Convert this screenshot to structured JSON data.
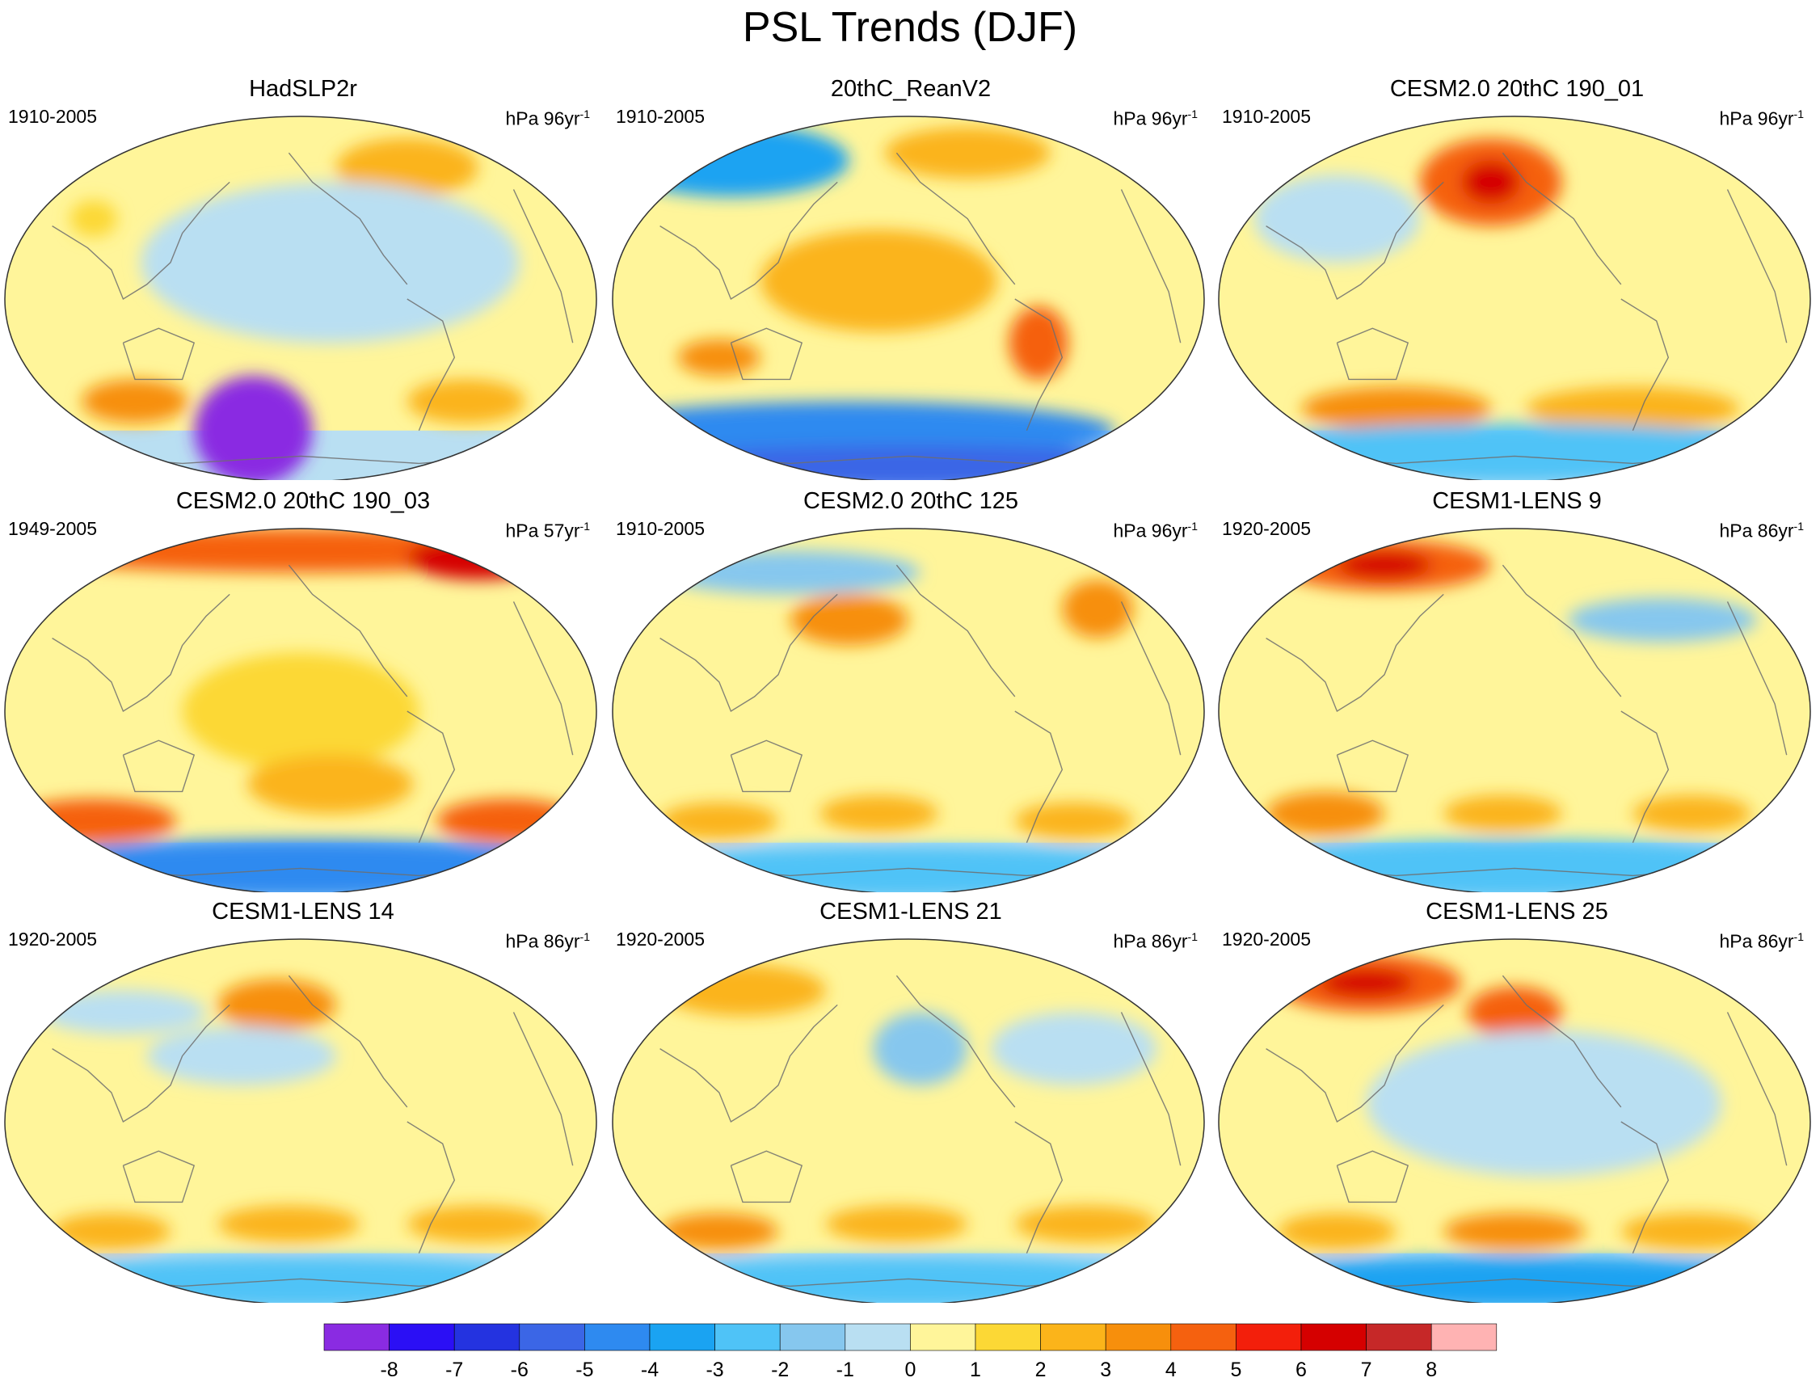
{
  "title": "PSL Trends (DJF)",
  "chart_data": {
    "type": "heatmap",
    "title": "PSL Trends (DJF)",
    "projection": "Robinson-like global map (Pacific-centered)",
    "colorbar": {
      "levels": [
        -8,
        -7,
        -6,
        -5,
        -4,
        -3,
        -2,
        -1,
        0,
        1,
        2,
        3,
        4,
        5,
        6,
        7,
        8
      ],
      "tick_labels": [
        "-8",
        "-7",
        "-6",
        "-5",
        "-4",
        "-3",
        "-2",
        "-1",
        "0",
        "1",
        "2",
        "3",
        "4",
        "5",
        "6",
        "7",
        "8"
      ],
      "colors": [
        "#8a2be2",
        "#2b0ff5",
        "#2433e0",
        "#3b66e6",
        "#2e8af0",
        "#1aa3f2",
        "#4fc3f7",
        "#86c7ee",
        "#b9dff2",
        "#fff59a",
        "#fcd835",
        "#fbb41a",
        "#f78f0c",
        "#f5610f",
        "#f31f0b",
        "#d50000",
        "#c62828",
        "#ffb3b3"
      ]
    },
    "panels": [
      {
        "name": "HadSLP2r",
        "period": "1910-2005",
        "units": "hPa 96yr",
        "units_sup": "-1",
        "features": [
          {
            "lon": 0.42,
            "lat": 0.86,
            "rx": 0.1,
            "ry": 0.15,
            "level": -8
          },
          {
            "lon": 0.42,
            "lat": 0.86,
            "rx": 0.06,
            "ry": 0.1,
            "level": -9
          },
          {
            "lon": 0.68,
            "lat": 0.14,
            "rx": 0.12,
            "ry": 0.08,
            "level": 2
          },
          {
            "lon": 0.22,
            "lat": 0.78,
            "rx": 0.09,
            "ry": 0.06,
            "level": 3
          },
          {
            "lon": 0.78,
            "lat": 0.78,
            "rx": 0.1,
            "ry": 0.06,
            "level": 2
          },
          {
            "lon": 0.15,
            "lat": 0.28,
            "rx": 0.04,
            "ry": 0.05,
            "level": 1
          },
          {
            "lon": 0.55,
            "lat": 0.4,
            "rx": 0.32,
            "ry": 0.22,
            "level": -1
          }
        ]
      },
      {
        "name": "20thC_ReanV2",
        "period": "1910-2005",
        "units": "hPa 96yr",
        "units_sup": "-1",
        "features": [
          {
            "lon": 0.2,
            "lat": 0.12,
            "rx": 0.2,
            "ry": 0.1,
            "level": -4
          },
          {
            "lon": 0.6,
            "lat": 0.1,
            "rx": 0.14,
            "ry": 0.07,
            "level": 2
          },
          {
            "lon": 0.45,
            "lat": 0.45,
            "rx": 0.2,
            "ry": 0.14,
            "level": 2
          },
          {
            "lon": 0.72,
            "lat": 0.62,
            "rx": 0.05,
            "ry": 0.1,
            "level": 4
          },
          {
            "lon": 0.18,
            "lat": 0.66,
            "rx": 0.07,
            "ry": 0.05,
            "level": 3
          },
          {
            "lon": 0.4,
            "lat": 0.86,
            "rx": 0.45,
            "ry": 0.08,
            "level": -5
          },
          {
            "lon": 0.5,
            "lat": 0.96,
            "rx": 0.5,
            "ry": 0.06,
            "level": -6
          }
        ]
      },
      {
        "name": "CESM2.0 20thC 190_01",
        "period": "1910-2005",
        "units": "hPa 96yr",
        "units_sup": "-1",
        "features": [
          {
            "lon": 0.46,
            "lat": 0.18,
            "rx": 0.12,
            "ry": 0.12,
            "level": 4
          },
          {
            "lon": 0.46,
            "lat": 0.18,
            "rx": 0.05,
            "ry": 0.06,
            "level": 6
          },
          {
            "lon": 0.2,
            "lat": 0.28,
            "rx": 0.14,
            "ry": 0.12,
            "level": -1
          },
          {
            "lon": 0.3,
            "lat": 0.8,
            "rx": 0.16,
            "ry": 0.06,
            "level": 3
          },
          {
            "lon": 0.7,
            "lat": 0.8,
            "rx": 0.18,
            "ry": 0.06,
            "level": 2
          },
          {
            "lon": 0.5,
            "lat": 0.92,
            "rx": 0.5,
            "ry": 0.08,
            "level": -3
          }
        ]
      },
      {
        "name": "CESM2.0 20thC 190_03",
        "period": "1949-2005",
        "units": "hPa 57yr",
        "units_sup": "-1",
        "features": [
          {
            "lon": 0.5,
            "lat": 0.06,
            "rx": 0.5,
            "ry": 0.06,
            "level": 4
          },
          {
            "lon": 0.8,
            "lat": 0.08,
            "rx": 0.12,
            "ry": 0.06,
            "level": 6
          },
          {
            "lon": 0.5,
            "lat": 0.5,
            "rx": 0.2,
            "ry": 0.16,
            "level": 1
          },
          {
            "lon": 0.55,
            "lat": 0.7,
            "rx": 0.14,
            "ry": 0.08,
            "level": 2
          },
          {
            "lon": 0.15,
            "lat": 0.8,
            "rx": 0.14,
            "ry": 0.06,
            "level": 4
          },
          {
            "lon": 0.85,
            "lat": 0.8,
            "rx": 0.12,
            "ry": 0.06,
            "level": 4
          },
          {
            "lon": 0.5,
            "lat": 0.93,
            "rx": 0.5,
            "ry": 0.08,
            "level": -5
          }
        ]
      },
      {
        "name": "CESM2.0 20thC 125",
        "period": "1910-2005",
        "units": "hPa 96yr",
        "units_sup": "-1",
        "features": [
          {
            "lon": 0.4,
            "lat": 0.25,
            "rx": 0.1,
            "ry": 0.07,
            "level": 3
          },
          {
            "lon": 0.82,
            "lat": 0.22,
            "rx": 0.06,
            "ry": 0.08,
            "level": 3
          },
          {
            "lon": 0.3,
            "lat": 0.12,
            "rx": 0.22,
            "ry": 0.06,
            "level": -2
          },
          {
            "lon": 0.18,
            "lat": 0.8,
            "rx": 0.1,
            "ry": 0.05,
            "level": 2
          },
          {
            "lon": 0.45,
            "lat": 0.78,
            "rx": 0.1,
            "ry": 0.05,
            "level": 2
          },
          {
            "lon": 0.78,
            "lat": 0.8,
            "rx": 0.1,
            "ry": 0.05,
            "level": 2
          },
          {
            "lon": 0.5,
            "lat": 0.94,
            "rx": 0.5,
            "ry": 0.07,
            "level": -3
          }
        ]
      },
      {
        "name": "CESM1-LENS 9",
        "period": "1920-2005",
        "units": "hPa 86yr",
        "units_sup": "-1",
        "features": [
          {
            "lon": 0.28,
            "lat": 0.1,
            "rx": 0.18,
            "ry": 0.07,
            "level": 4
          },
          {
            "lon": 0.28,
            "lat": 0.1,
            "rx": 0.08,
            "ry": 0.04,
            "level": 6
          },
          {
            "lon": 0.75,
            "lat": 0.25,
            "rx": 0.16,
            "ry": 0.06,
            "level": -2
          },
          {
            "lon": 0.18,
            "lat": 0.78,
            "rx": 0.1,
            "ry": 0.06,
            "level": 3
          },
          {
            "lon": 0.48,
            "lat": 0.78,
            "rx": 0.1,
            "ry": 0.05,
            "level": 2
          },
          {
            "lon": 0.8,
            "lat": 0.78,
            "rx": 0.1,
            "ry": 0.05,
            "level": 2
          },
          {
            "lon": 0.5,
            "lat": 0.93,
            "rx": 0.5,
            "ry": 0.08,
            "level": -3
          }
        ]
      },
      {
        "name": "CESM1-LENS 14",
        "period": "1920-2005",
        "units": "hPa 86yr",
        "units_sup": "-1",
        "features": [
          {
            "lon": 0.46,
            "lat": 0.18,
            "rx": 0.1,
            "ry": 0.07,
            "level": 3
          },
          {
            "lon": 0.4,
            "lat": 0.32,
            "rx": 0.16,
            "ry": 0.08,
            "level": -1
          },
          {
            "lon": 0.2,
            "lat": 0.2,
            "rx": 0.14,
            "ry": 0.06,
            "level": -1
          },
          {
            "lon": 0.18,
            "lat": 0.8,
            "rx": 0.1,
            "ry": 0.05,
            "level": 2
          },
          {
            "lon": 0.48,
            "lat": 0.78,
            "rx": 0.12,
            "ry": 0.05,
            "level": 2
          },
          {
            "lon": 0.8,
            "lat": 0.78,
            "rx": 0.12,
            "ry": 0.05,
            "level": 2
          },
          {
            "lon": 0.5,
            "lat": 0.94,
            "rx": 0.5,
            "ry": 0.07,
            "level": -3
          }
        ]
      },
      {
        "name": "CESM1-LENS 21",
        "period": "1920-2005",
        "units": "hPa 86yr",
        "units_sup": "-1",
        "features": [
          {
            "lon": 0.22,
            "lat": 0.14,
            "rx": 0.14,
            "ry": 0.07,
            "level": 2
          },
          {
            "lon": 0.52,
            "lat": 0.3,
            "rx": 0.08,
            "ry": 0.1,
            "level": -2
          },
          {
            "lon": 0.78,
            "lat": 0.3,
            "rx": 0.14,
            "ry": 0.1,
            "level": -1
          },
          {
            "lon": 0.18,
            "lat": 0.8,
            "rx": 0.1,
            "ry": 0.05,
            "level": 3
          },
          {
            "lon": 0.48,
            "lat": 0.78,
            "rx": 0.12,
            "ry": 0.05,
            "level": 2
          },
          {
            "lon": 0.8,
            "lat": 0.78,
            "rx": 0.12,
            "ry": 0.05,
            "level": 2
          },
          {
            "lon": 0.5,
            "lat": 0.94,
            "rx": 0.5,
            "ry": 0.07,
            "level": -3
          }
        ]
      },
      {
        "name": "CESM1-LENS 25",
        "period": "1920-2005",
        "units": "hPa 86yr",
        "units_sup": "-1",
        "features": [
          {
            "lon": 0.25,
            "lat": 0.12,
            "rx": 0.16,
            "ry": 0.08,
            "level": 4
          },
          {
            "lon": 0.25,
            "lat": 0.12,
            "rx": 0.08,
            "ry": 0.04,
            "level": 6
          },
          {
            "lon": 0.5,
            "lat": 0.2,
            "rx": 0.08,
            "ry": 0.07,
            "level": 4
          },
          {
            "lon": 0.55,
            "lat": 0.45,
            "rx": 0.3,
            "ry": 0.2,
            "level": -1
          },
          {
            "lon": 0.2,
            "lat": 0.8,
            "rx": 0.1,
            "ry": 0.05,
            "level": 2
          },
          {
            "lon": 0.5,
            "lat": 0.8,
            "rx": 0.12,
            "ry": 0.05,
            "level": 3
          },
          {
            "lon": 0.8,
            "lat": 0.8,
            "rx": 0.12,
            "ry": 0.05,
            "level": 2
          },
          {
            "lon": 0.5,
            "lat": 0.94,
            "rx": 0.5,
            "ry": 0.07,
            "level": -4
          }
        ]
      }
    ]
  }
}
